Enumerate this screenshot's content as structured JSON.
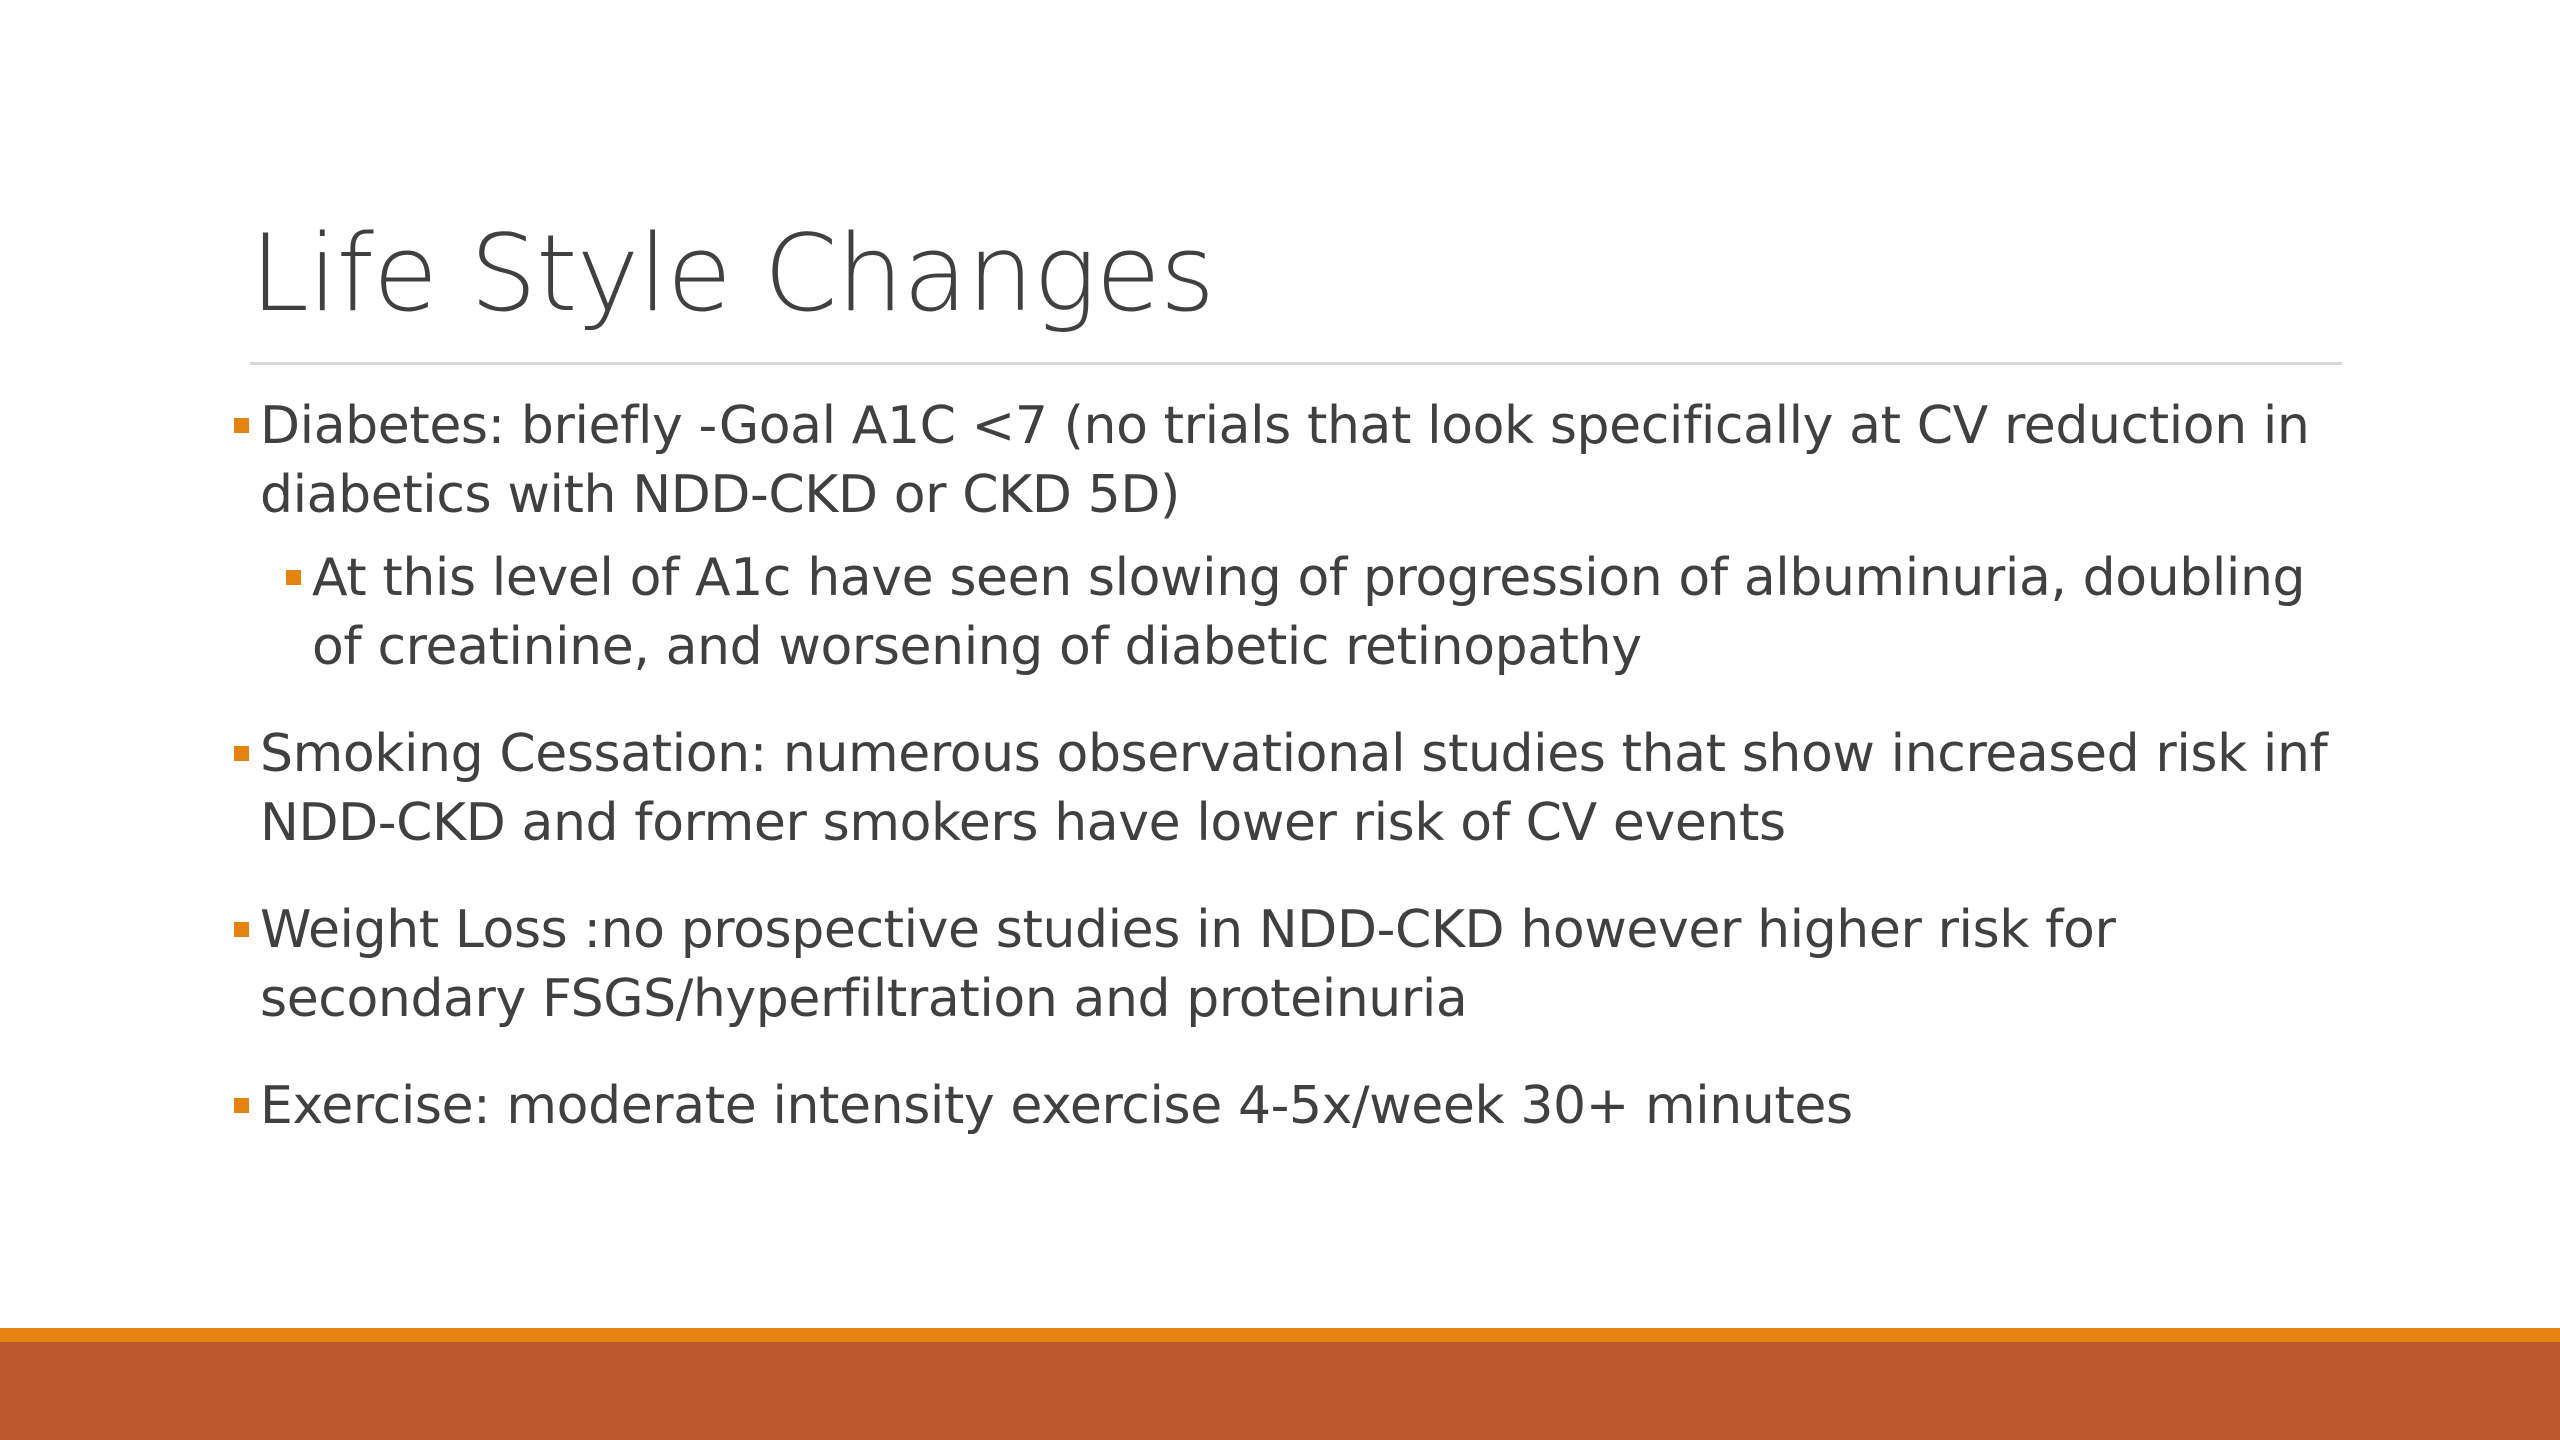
{
  "slide": {
    "title": "Life Style Changes",
    "bullets": [
      {
        "level": 1,
        "text": "Diabetes: briefly -Goal A1C <7 (no trials that look specifically at CV reduction in diabetics with NDD-CKD or CKD 5D)"
      },
      {
        "level": 2,
        "text": "At this level of A1c have seen slowing of progression of albuminuria, doubling of creatinine, and worsening of diabetic retinopathy"
      },
      {
        "level": 1,
        "text": "Smoking Cessation: numerous observational studies that show increased risk inf NDD-CKD and former smokers have lower risk of CV events"
      },
      {
        "level": 1,
        "text": "Weight Loss :no prospective studies in NDD-CKD however higher risk for secondary FSGS/hyperfiltration and proteinuria"
      },
      {
        "level": 1,
        "text": "Exercise: moderate intensity exercise 4-5x/week 30+ minutes"
      }
    ]
  },
  "theme": {
    "bullet_color": "#e48312",
    "accent_stripe": "#e48312",
    "footer_color": "#bd582c",
    "text_color": "#404040",
    "rule_color": "#d9d9d9"
  }
}
